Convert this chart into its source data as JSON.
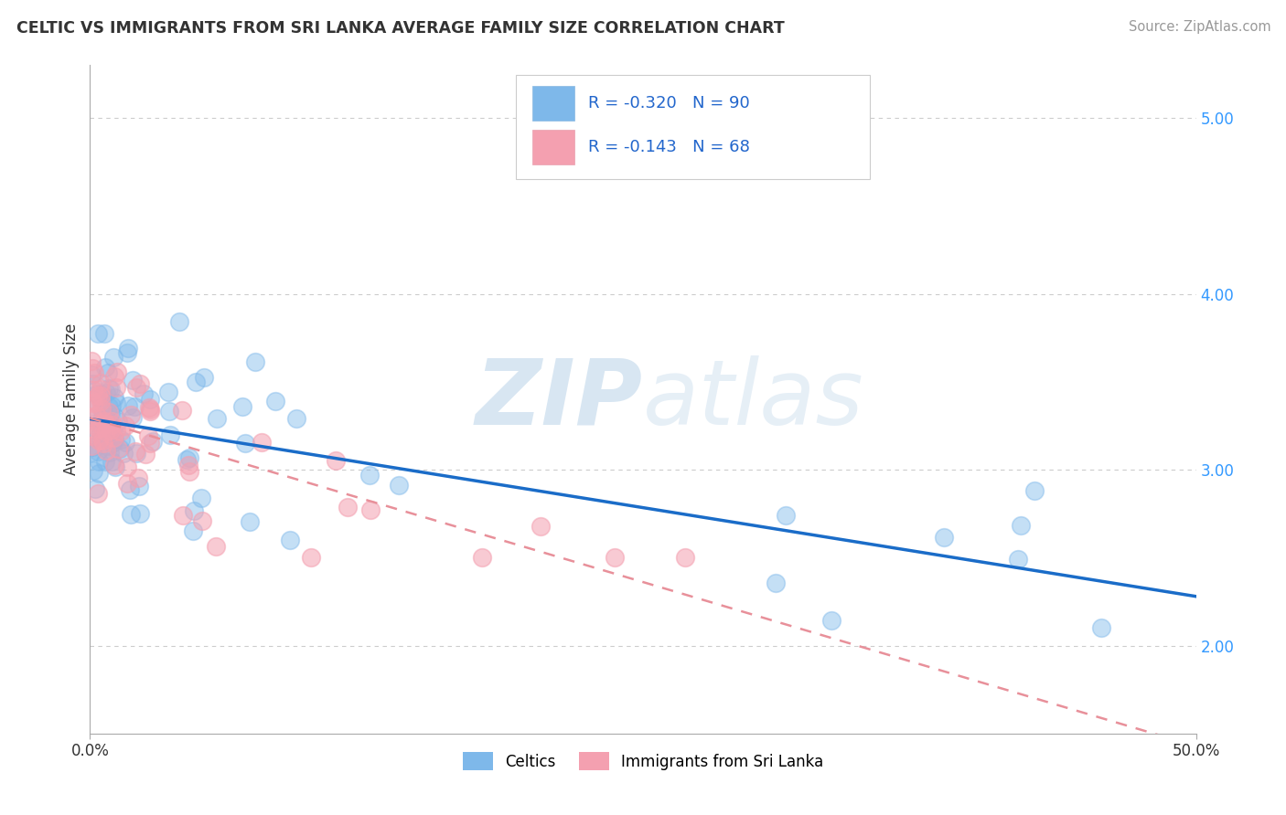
{
  "title": "CELTIC VS IMMIGRANTS FROM SRI LANKA AVERAGE FAMILY SIZE CORRELATION CHART",
  "source": "Source: ZipAtlas.com",
  "ylabel": "Average Family Size",
  "xlim": [
    0.0,
    50.0
  ],
  "ylim": [
    1.5,
    5.3
  ],
  "right_yticks": [
    2.0,
    3.0,
    4.0,
    5.0
  ],
  "legend_r1": "R = -0.320",
  "legend_n1": "N = 90",
  "legend_r2": "R = -0.143",
  "legend_n2": "N = 68",
  "series1_color": "#7EB8EA",
  "series2_color": "#F4A0B0",
  "trendline1_color": "#1A6CC8",
  "trendline2_color": "#E8909A",
  "background_color": "#FFFFFF",
  "grid_color": "#CCCCCC",
  "watermark_zip": "ZIP",
  "watermark_atlas": "atlas",
  "title_color": "#333333",
  "source_color": "#999999",
  "axis_color": "#AAAAAA",
  "tick_color": "#333333",
  "right_tick_color": "#3399FF"
}
